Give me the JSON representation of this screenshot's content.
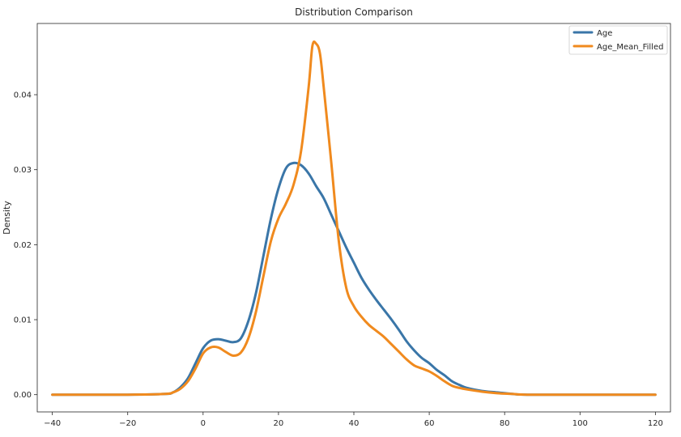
{
  "chart_data": {
    "type": "line",
    "title": "Distribution Comparison",
    "xlabel": "",
    "ylabel": "Density",
    "xlim": [
      -44,
      124
    ],
    "ylim": [
      -0.0023,
      0.0495
    ],
    "xticks": [
      -40,
      -20,
      0,
      20,
      40,
      60,
      80,
      100,
      120
    ],
    "xtick_labels": [
      "−40",
      "−20",
      "0",
      "20",
      "40",
      "60",
      "80",
      "100",
      "120"
    ],
    "yticks": [
      0.0,
      0.01,
      0.02,
      0.03,
      0.04
    ],
    "ytick_labels": [
      "0.00",
      "0.01",
      "0.02",
      "0.03",
      "0.04"
    ],
    "grid": false,
    "legend_position": "top-right",
    "series": [
      {
        "name": "Age",
        "color": "#3a76a8",
        "points": [
          [
            -40,
            0
          ],
          [
            -20,
            0
          ],
          [
            -10,
            0.0001
          ],
          [
            -8,
            0.0003
          ],
          [
            -6,
            0.001
          ],
          [
            -4,
            0.0022
          ],
          [
            -2,
            0.0042
          ],
          [
            0,
            0.0062
          ],
          [
            2,
            0.0072
          ],
          [
            4,
            0.0074
          ],
          [
            6,
            0.0072
          ],
          [
            8,
            0.007
          ],
          [
            10,
            0.0075
          ],
          [
            12,
            0.0098
          ],
          [
            14,
            0.0135
          ],
          [
            16,
            0.0185
          ],
          [
            18,
            0.0235
          ],
          [
            20,
            0.0275
          ],
          [
            22,
            0.0302
          ],
          [
            24,
            0.0309
          ],
          [
            26,
            0.0306
          ],
          [
            28,
            0.0295
          ],
          [
            30,
            0.0278
          ],
          [
            32,
            0.0262
          ],
          [
            34,
            0.024
          ],
          [
            36,
            0.0218
          ],
          [
            38,
            0.0196
          ],
          [
            40,
            0.0176
          ],
          [
            42,
            0.0156
          ],
          [
            44,
            0.014
          ],
          [
            46,
            0.0126
          ],
          [
            48,
            0.0113
          ],
          [
            50,
            0.01
          ],
          [
            52,
            0.0086
          ],
          [
            54,
            0.0071
          ],
          [
            56,
            0.0059
          ],
          [
            58,
            0.0049
          ],
          [
            60,
            0.0042
          ],
          [
            62,
            0.0033
          ],
          [
            64,
            0.0026
          ],
          [
            66,
            0.0018
          ],
          [
            68,
            0.0013
          ],
          [
            70,
            0.0009
          ],
          [
            74,
            0.0005
          ],
          [
            78,
            0.0003
          ],
          [
            82,
            0.0001
          ],
          [
            86,
            0
          ],
          [
            100,
            0
          ],
          [
            120,
            0
          ]
        ]
      },
      {
        "name": "Age_Mean_Filled",
        "color": "#f08a1e",
        "points": [
          [
            -40,
            0
          ],
          [
            -20,
            0
          ],
          [
            -10,
            0.0001
          ],
          [
            -8,
            0.0003
          ],
          [
            -6,
            0.0008
          ],
          [
            -4,
            0.0018
          ],
          [
            -2,
            0.0035
          ],
          [
            0,
            0.0055
          ],
          [
            2,
            0.0063
          ],
          [
            4,
            0.0063
          ],
          [
            6,
            0.0057
          ],
          [
            8,
            0.0052
          ],
          [
            10,
            0.0056
          ],
          [
            12,
            0.0075
          ],
          [
            14,
            0.011
          ],
          [
            16,
            0.0158
          ],
          [
            18,
            0.0205
          ],
          [
            20,
            0.0235
          ],
          [
            22,
            0.0255
          ],
          [
            24,
            0.028
          ],
          [
            26,
            0.0325
          ],
          [
            28,
            0.041
          ],
          [
            29,
            0.0465
          ],
          [
            30,
            0.0468
          ],
          [
            31,
            0.0455
          ],
          [
            32,
            0.041
          ],
          [
            34,
            0.031
          ],
          [
            36,
            0.0205
          ],
          [
            38,
            0.0142
          ],
          [
            40,
            0.0118
          ],
          [
            42,
            0.0104
          ],
          [
            44,
            0.0093
          ],
          [
            46,
            0.0085
          ],
          [
            48,
            0.0077
          ],
          [
            50,
            0.0067
          ],
          [
            52,
            0.0057
          ],
          [
            54,
            0.0047
          ],
          [
            56,
            0.0039
          ],
          [
            58,
            0.0035
          ],
          [
            60,
            0.0031
          ],
          [
            62,
            0.0025
          ],
          [
            64,
            0.0018
          ],
          [
            66,
            0.0012
          ],
          [
            68,
            0.0009
          ],
          [
            70,
            0.0007
          ],
          [
            74,
            0.0004
          ],
          [
            78,
            0.0002
          ],
          [
            82,
            0.0001
          ],
          [
            86,
            0
          ],
          [
            100,
            0
          ],
          [
            120,
            0
          ]
        ]
      }
    ]
  }
}
